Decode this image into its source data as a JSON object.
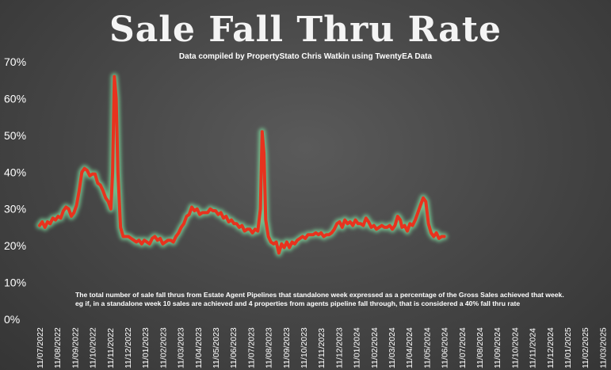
{
  "title": "Sale Fall Thru Rate",
  "subtitle": "Data compiled by PropertyStato Chris Watkin using TwentyEA Data",
  "note_line1": "The total number of sale fall thrus from Estate Agent Pipelines that standalone week expressed as a percentage of the Gross Sales achieved that week.",
  "note_line2": "eg if, in a standalone week 10 sales are achieved and 4 properties from agents pipeline fall through, that is considered a 40%  fall thru rate",
  "colors": {
    "line": "#e8321e",
    "glow": "#7fe0a0",
    "text": "#ffffff"
  },
  "chart_data": {
    "type": "line",
    "title": "Sale Fall Thru Rate",
    "ylim": [
      0,
      70
    ],
    "y_ticks": [
      "0%",
      "10%",
      "20%",
      "30%",
      "40%",
      "50%",
      "60%",
      "70%"
    ],
    "x_tick_labels": [
      "11/07/2022",
      "11/08/2022",
      "11/09/2022",
      "11/10/2022",
      "11/11/2022",
      "11/12/2022",
      "11/01/2023",
      "11/02/2023",
      "11/03/2023",
      "11/04/2023",
      "11/05/2023",
      "11/06/2023",
      "11/07/2023",
      "11/08/2023",
      "11/09/2023",
      "11/10/2023",
      "11/11/2023",
      "11/12/2023",
      "11/01/2024",
      "11/02/2024",
      "11/03/2024",
      "11/04/2024",
      "11/05/2024",
      "11/06/2024",
      "11/07/2024",
      "11/08/2024",
      "11/09/2024",
      "11/10/2024",
      "11/11/2024",
      "11/12/2024",
      "11/01/2025",
      "11/02/2025",
      "11/03/2025"
    ],
    "grid": false,
    "legend": "none",
    "series": [
      {
        "values": [
          [
            0,
            25.5
          ],
          [
            0.15,
            26.5
          ],
          [
            0.3,
            25
          ],
          [
            0.45,
            26.5
          ],
          [
            0.6,
            26
          ],
          [
            0.75,
            27.5
          ],
          [
            0.9,
            27
          ],
          [
            1.05,
            28
          ],
          [
            1.2,
            27.5
          ],
          [
            1.35,
            29.5
          ],
          [
            1.5,
            30.5
          ],
          [
            1.65,
            30
          ],
          [
            1.8,
            28
          ],
          [
            1.95,
            29
          ],
          [
            2.1,
            31
          ],
          [
            2.25,
            35
          ],
          [
            2.4,
            40
          ],
          [
            2.55,
            41
          ],
          [
            2.7,
            40.5
          ],
          [
            2.85,
            39
          ],
          [
            3.0,
            39.5
          ],
          [
            3.15,
            39.5
          ],
          [
            3.3,
            37
          ],
          [
            3.45,
            36.5
          ],
          [
            3.6,
            35
          ],
          [
            3.75,
            33
          ],
          [
            3.9,
            32
          ],
          [
            4.05,
            30
          ],
          [
            4.15,
            40
          ],
          [
            4.25,
            66
          ],
          [
            4.35,
            60
          ],
          [
            4.45,
            40
          ],
          [
            4.6,
            25
          ],
          [
            4.75,
            22.5
          ],
          [
            4.9,
            22.5
          ],
          [
            5.05,
            22.5
          ],
          [
            5.2,
            22
          ],
          [
            5.35,
            21.5
          ],
          [
            5.5,
            21
          ],
          [
            5.65,
            21.5
          ],
          [
            5.8,
            20.5
          ],
          [
            5.95,
            21.5
          ],
          [
            6.1,
            21
          ],
          [
            6.25,
            20.5
          ],
          [
            6.4,
            22
          ],
          [
            6.55,
            22.5
          ],
          [
            6.7,
            21.5
          ],
          [
            6.85,
            22
          ],
          [
            7.0,
            20.5
          ],
          [
            7.15,
            21
          ],
          [
            7.3,
            21.5
          ],
          [
            7.45,
            21.5
          ],
          [
            7.6,
            21
          ],
          [
            7.75,
            22.5
          ],
          [
            7.9,
            23.5
          ],
          [
            8.05,
            25
          ],
          [
            8.2,
            26
          ],
          [
            8.35,
            28
          ],
          [
            8.5,
            28.5
          ],
          [
            8.65,
            30.5
          ],
          [
            8.8,
            29.5
          ],
          [
            8.95,
            30
          ],
          [
            9.1,
            28.5
          ],
          [
            9.25,
            29
          ],
          [
            9.4,
            29
          ],
          [
            9.55,
            29
          ],
          [
            9.7,
            30
          ],
          [
            9.85,
            29.5
          ],
          [
            10.0,
            29.5
          ],
          [
            10.15,
            28.5
          ],
          [
            10.3,
            29
          ],
          [
            10.45,
            27.5
          ],
          [
            10.6,
            28
          ],
          [
            10.75,
            26.5
          ],
          [
            10.9,
            27
          ],
          [
            11.05,
            26
          ],
          [
            11.2,
            26
          ],
          [
            11.35,
            25
          ],
          [
            11.5,
            25.5
          ],
          [
            11.65,
            24
          ],
          [
            11.8,
            24.5
          ],
          [
            11.95,
            24.5
          ],
          [
            12.1,
            23.5
          ],
          [
            12.25,
            24.5
          ],
          [
            12.4,
            24
          ],
          [
            12.55,
            30
          ],
          [
            12.65,
            51
          ],
          [
            12.75,
            45
          ],
          [
            12.85,
            27
          ],
          [
            13.0,
            22.5
          ],
          [
            13.15,
            21
          ],
          [
            13.3,
            20.5
          ],
          [
            13.45,
            21
          ],
          [
            13.6,
            18
          ],
          [
            13.75,
            20.5
          ],
          [
            13.9,
            19.5
          ],
          [
            14.05,
            21
          ],
          [
            14.2,
            19.5
          ],
          [
            14.35,
            21
          ],
          [
            14.5,
            20.5
          ],
          [
            14.65,
            21.5
          ],
          [
            14.8,
            22
          ],
          [
            14.95,
            22.5
          ],
          [
            15.1,
            22
          ],
          [
            15.25,
            23
          ],
          [
            15.4,
            23
          ],
          [
            15.55,
            23
          ],
          [
            15.7,
            23.5
          ],
          [
            15.85,
            23
          ],
          [
            16.0,
            23.5
          ],
          [
            16.15,
            22.5
          ],
          [
            16.3,
            23
          ],
          [
            16.45,
            23
          ],
          [
            16.6,
            23.5
          ],
          [
            16.75,
            24.5
          ],
          [
            16.9,
            26
          ],
          [
            17.05,
            26.5
          ],
          [
            17.2,
            25
          ],
          [
            17.35,
            27
          ],
          [
            17.5,
            26
          ],
          [
            17.65,
            26.5
          ],
          [
            17.8,
            25.5
          ],
          [
            17.95,
            27
          ],
          [
            18.1,
            26
          ],
          [
            18.25,
            26
          ],
          [
            18.4,
            25.5
          ],
          [
            18.55,
            27.5
          ],
          [
            18.7,
            26.5
          ],
          [
            18.85,
            25
          ],
          [
            19.0,
            25.5
          ],
          [
            19.15,
            24.5
          ],
          [
            19.3,
            25
          ],
          [
            19.45,
            25.5
          ],
          [
            19.6,
            25
          ],
          [
            19.75,
            25
          ],
          [
            19.9,
            25.5
          ],
          [
            20.05,
            24.5
          ],
          [
            20.2,
            25.5
          ],
          [
            20.35,
            28
          ],
          [
            20.5,
            27
          ],
          [
            20.6,
            25
          ],
          [
            20.75,
            25.5
          ],
          [
            20.9,
            24
          ],
          [
            21.05,
            26
          ],
          [
            21.2,
            25.5
          ],
          [
            21.35,
            27
          ],
          [
            21.5,
            29
          ],
          [
            21.65,
            31
          ],
          [
            21.8,
            33
          ],
          [
            21.95,
            32
          ],
          [
            22.1,
            26
          ],
          [
            22.25,
            23.5
          ],
          [
            22.4,
            22.5
          ],
          [
            22.55,
            23.5
          ],
          [
            22.7,
            22
          ],
          [
            22.85,
            22.5
          ],
          [
            23.0,
            22.5
          ]
        ]
      }
    ]
  }
}
